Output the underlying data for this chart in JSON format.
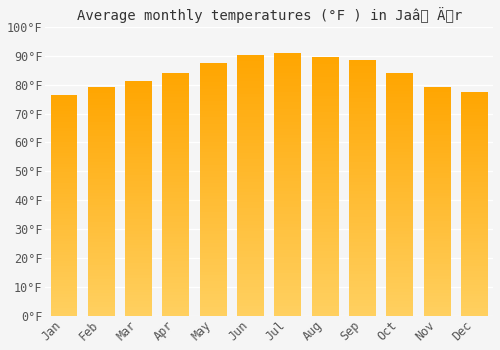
{
  "title": "Average monthly temperatures (°F ) in Jaâ Är",
  "title_display": "Average monthly temperatures (°F ) in Jaâ Är",
  "months": [
    "Jan",
    "Feb",
    "Mar",
    "Apr",
    "May",
    "Jun",
    "Jul",
    "Aug",
    "Sep",
    "Oct",
    "Nov",
    "Dec"
  ],
  "values": [
    76.5,
    79.0,
    81.3,
    84.0,
    87.3,
    90.3,
    91.0,
    89.5,
    88.5,
    84.0,
    79.3,
    77.3
  ],
  "bar_color_bottom": "#FFD060",
  "bar_color_top": "#FFA500",
  "ylim": [
    0,
    100
  ],
  "yticks": [
    0,
    10,
    20,
    30,
    40,
    50,
    60,
    70,
    80,
    90,
    100
  ],
  "ytick_labels": [
    "0°F",
    "10°F",
    "20°F",
    "30°F",
    "40°F",
    "50°F",
    "60°F",
    "70°F",
    "80°F",
    "90°F",
    "100°F"
  ],
  "background_color": "#f5f5f5",
  "grid_color": "#ffffff",
  "title_fontsize": 10,
  "tick_fontsize": 8.5
}
